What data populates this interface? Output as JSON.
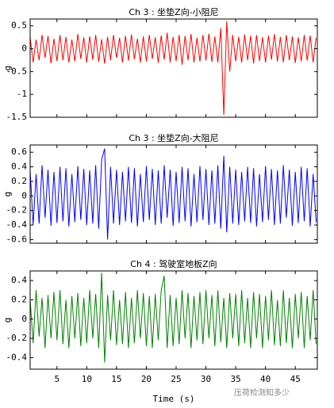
{
  "chart_data": [
    {
      "type": "line",
      "title": "Ch 3 : 坐垫Z向-小阻尼",
      "ylabel": "g",
      "color": "#ff0000",
      "show_xtick_labels": false,
      "xlim": [
        0.5,
        48.7
      ],
      "xticks": [
        5,
        10,
        15,
        20,
        25,
        30,
        35,
        40,
        45
      ],
      "ylim": [
        -1.5,
        0.65
      ],
      "yticks": [
        0.5,
        0,
        -0.5,
        -1,
        -1.5
      ],
      "x": [
        0.5,
        1,
        1.5,
        2,
        2.5,
        3,
        3.5,
        4,
        4.5,
        5,
        5.5,
        6,
        6.5,
        7,
        7.5,
        8,
        8.5,
        9,
        9.5,
        10,
        10.5,
        11,
        11.5,
        12,
        12.5,
        13,
        13.5,
        14,
        14.5,
        15,
        15.5,
        16,
        16.5,
        17,
        17.5,
        18,
        18.5,
        19,
        19.5,
        20,
        20.5,
        21,
        21.5,
        22,
        22.5,
        23,
        23.5,
        24,
        24.5,
        25,
        25.5,
        26,
        26.5,
        27,
        27.5,
        28,
        28.5,
        29,
        29.5,
        30,
        30.5,
        31,
        31.5,
        32,
        32.5,
        33,
        33.5,
        34,
        34.5,
        35,
        35.5,
        36,
        36.5,
        37,
        37.5,
        38,
        38.5,
        39,
        39.5,
        40,
        40.5,
        41,
        41.5,
        42,
        42.5,
        43,
        43.5,
        44,
        44.5,
        45,
        45.5,
        46,
        46.5,
        47,
        47.5,
        48,
        48.5
      ],
      "values": [
        0.25,
        -0.3,
        0.2,
        -0.25,
        0.3,
        -0.2,
        0.28,
        -0.32,
        0.22,
        -0.27,
        0.3,
        -0.25,
        0.26,
        -0.3,
        0.2,
        -0.28,
        0.32,
        -0.22,
        0.25,
        -0.3,
        0.27,
        -0.24,
        0.3,
        -0.29,
        0.21,
        -0.33,
        0.26,
        -0.25,
        0.3,
        -0.2,
        0.24,
        -0.3,
        0.28,
        -0.26,
        0.31,
        -0.23,
        0.22,
        -0.3,
        0.27,
        -0.28,
        0.3,
        -0.22,
        0.25,
        -0.31,
        0.29,
        -0.24,
        0.35,
        -0.3,
        0.26,
        -0.27,
        0.3,
        -0.35,
        0.28,
        -0.25,
        0.32,
        -0.3,
        0.24,
        -0.28,
        0.3,
        -0.26,
        0.33,
        -0.29,
        0.27,
        -0.3,
        0.45,
        -1.45,
        0.6,
        -0.5,
        0.3,
        -0.28,
        0.26,
        -0.3,
        0.31,
        -0.25,
        0.28,
        -0.32,
        0.3,
        -0.27,
        0.25,
        -0.3,
        0.29,
        -0.24,
        0.32,
        -0.28,
        0.26,
        -0.3,
        0.3,
        -0.25,
        0.27,
        -0.31,
        0.25,
        -0.28,
        0.3,
        -0.26,
        0.29,
        -0.3,
        0.24
      ]
    },
    {
      "type": "line",
      "title": "Ch 3 : 坐垫Z向-大阻尼",
      "ylabel": "g",
      "color": "#0000ff",
      "show_xtick_labels": false,
      "xlim": [
        0.5,
        48.7
      ],
      "xticks": [
        5,
        10,
        15,
        20,
        25,
        30,
        35,
        40,
        45
      ],
      "ylim": [
        -0.65,
        0.7
      ],
      "yticks": [
        0.6,
        0.4,
        0.2,
        0,
        -0.2,
        -0.4,
        -0.6
      ],
      "x": [
        0.5,
        1,
        1.5,
        2,
        2.5,
        3,
        3.5,
        4,
        4.5,
        5,
        5.5,
        6,
        6.5,
        7,
        7.5,
        8,
        8.5,
        9,
        9.5,
        10,
        10.5,
        11,
        11.5,
        12,
        12.5,
        13,
        13.5,
        14,
        14.5,
        15,
        15.5,
        16,
        16.5,
        17,
        17.5,
        18,
        18.5,
        19,
        19.5,
        20,
        20.5,
        21,
        21.5,
        22,
        22.5,
        23,
        23.5,
        24,
        24.5,
        25,
        25.5,
        26,
        26.5,
        27,
        27.5,
        28,
        28.5,
        29,
        29.5,
        30,
        30.5,
        31,
        31.5,
        32,
        32.5,
        33,
        33.5,
        34,
        34.5,
        35,
        35.5,
        36,
        36.5,
        37,
        37.5,
        38,
        38.5,
        39,
        39.5,
        40,
        40.5,
        41,
        41.5,
        42,
        42.5,
        43,
        43.5,
        44,
        44.5,
        45,
        45.5,
        46,
        46.5,
        47,
        47.5,
        48,
        48.5
      ],
      "values": [
        0.35,
        -0.4,
        0.3,
        -0.38,
        0.42,
        -0.3,
        0.36,
        -0.41,
        0.33,
        -0.37,
        0.4,
        -0.35,
        0.38,
        -0.42,
        0.3,
        -0.36,
        0.41,
        -0.33,
        0.37,
        -0.4,
        0.35,
        -0.38,
        0.42,
        -0.45,
        0.5,
        0.65,
        -0.6,
        0.4,
        -0.38,
        0.36,
        -0.4,
        0.33,
        -0.35,
        0.4,
        -0.37,
        0.38,
        -0.42,
        0.3,
        -0.36,
        0.41,
        -0.33,
        0.37,
        -0.4,
        0.35,
        -0.38,
        0.42,
        -0.3,
        0.36,
        -0.41,
        0.33,
        -0.37,
        0.4,
        -0.35,
        0.38,
        -0.42,
        0.3,
        -0.36,
        0.41,
        -0.33,
        0.37,
        -0.4,
        0.35,
        -0.38,
        0.42,
        -0.45,
        0.55,
        -0.5,
        0.4,
        -0.38,
        0.36,
        -0.4,
        0.33,
        -0.35,
        0.4,
        -0.37,
        0.38,
        -0.42,
        0.3,
        -0.36,
        0.41,
        -0.33,
        0.37,
        -0.4,
        0.35,
        -0.38,
        0.42,
        -0.3,
        0.36,
        -0.41,
        0.33,
        -0.37,
        0.4,
        -0.35,
        0.38,
        -0.42,
        0.3,
        -0.36
      ]
    },
    {
      "type": "line",
      "title": "Ch 4 : 驾驶室地板Z向",
      "ylabel": "g",
      "xlabel": "Time (s)",
      "color": "#008000",
      "show_xtick_labels": true,
      "xlim": [
        0.5,
        48.7
      ],
      "xticks": [
        5,
        10,
        15,
        20,
        25,
        30,
        35,
        40,
        45
      ],
      "ylim": [
        -0.52,
        0.5
      ],
      "yticks": [
        0.4,
        0.2,
        0,
        -0.2,
        -0.4
      ],
      "x": [
        0.5,
        1,
        1.5,
        2,
        2.5,
        3,
        3.5,
        4,
        4.5,
        5,
        5.5,
        6,
        6.5,
        7,
        7.5,
        8,
        8.5,
        9,
        9.5,
        10,
        10.5,
        11,
        11.5,
        12,
        12.5,
        13,
        13.5,
        14,
        14.5,
        15,
        15.5,
        16,
        16.5,
        17,
        17.5,
        18,
        18.5,
        19,
        19.5,
        20,
        20.5,
        21,
        21.5,
        22,
        22.5,
        23,
        23.5,
        24,
        24.5,
        25,
        25.5,
        26,
        26.5,
        27,
        27.5,
        28,
        28.5,
        29,
        29.5,
        30,
        30.5,
        31,
        31.5,
        32,
        32.5,
        33,
        33.5,
        34,
        34.5,
        35,
        35.5,
        36,
        36.5,
        37,
        37.5,
        38,
        38.5,
        39,
        39.5,
        40,
        40.5,
        41,
        41.5,
        42,
        42.5,
        43,
        43.5,
        44,
        44.5,
        45,
        45.5,
        46,
        46.5,
        47,
        47.5,
        48,
        48.5
      ],
      "values": [
        0.2,
        -0.25,
        0.3,
        -0.18,
        0.22,
        -0.3,
        0.25,
        -0.2,
        0.28,
        -0.22,
        0.3,
        -0.26,
        0.2,
        -0.3,
        0.24,
        -0.2,
        0.27,
        -0.28,
        0.22,
        -0.25,
        0.3,
        -0.2,
        0.26,
        -0.3,
        0.48,
        -0.45,
        0.25,
        -0.22,
        0.3,
        -0.27,
        0.2,
        -0.26,
        0.28,
        -0.3,
        0.22,
        -0.25,
        0.3,
        -0.2,
        0.27,
        -0.28,
        0.24,
        -0.3,
        0.26,
        -0.22,
        0.3,
        0.45,
        -0.3,
        0.25,
        -0.28,
        0.22,
        -0.26,
        0.3,
        -0.2,
        0.27,
        -0.3,
        0.24,
        -0.22,
        0.28,
        -0.26,
        0.3,
        -0.2,
        0.25,
        -0.28,
        0.3,
        -0.24,
        0.22,
        -0.3,
        0.27,
        -0.2,
        0.26,
        -0.28,
        0.3,
        -0.25,
        0.22,
        -0.3,
        0.28,
        -0.2,
        0.26,
        -0.3,
        0.24,
        -0.22,
        0.3,
        -0.27,
        0.2,
        -0.28,
        0.3,
        -0.25,
        0.22,
        -0.3,
        0.26,
        -0.2,
        0.28,
        -0.3,
        0.24,
        -0.22,
        0.3,
        -0.26
      ]
    }
  ],
  "watermark": "压荷检测知多少"
}
